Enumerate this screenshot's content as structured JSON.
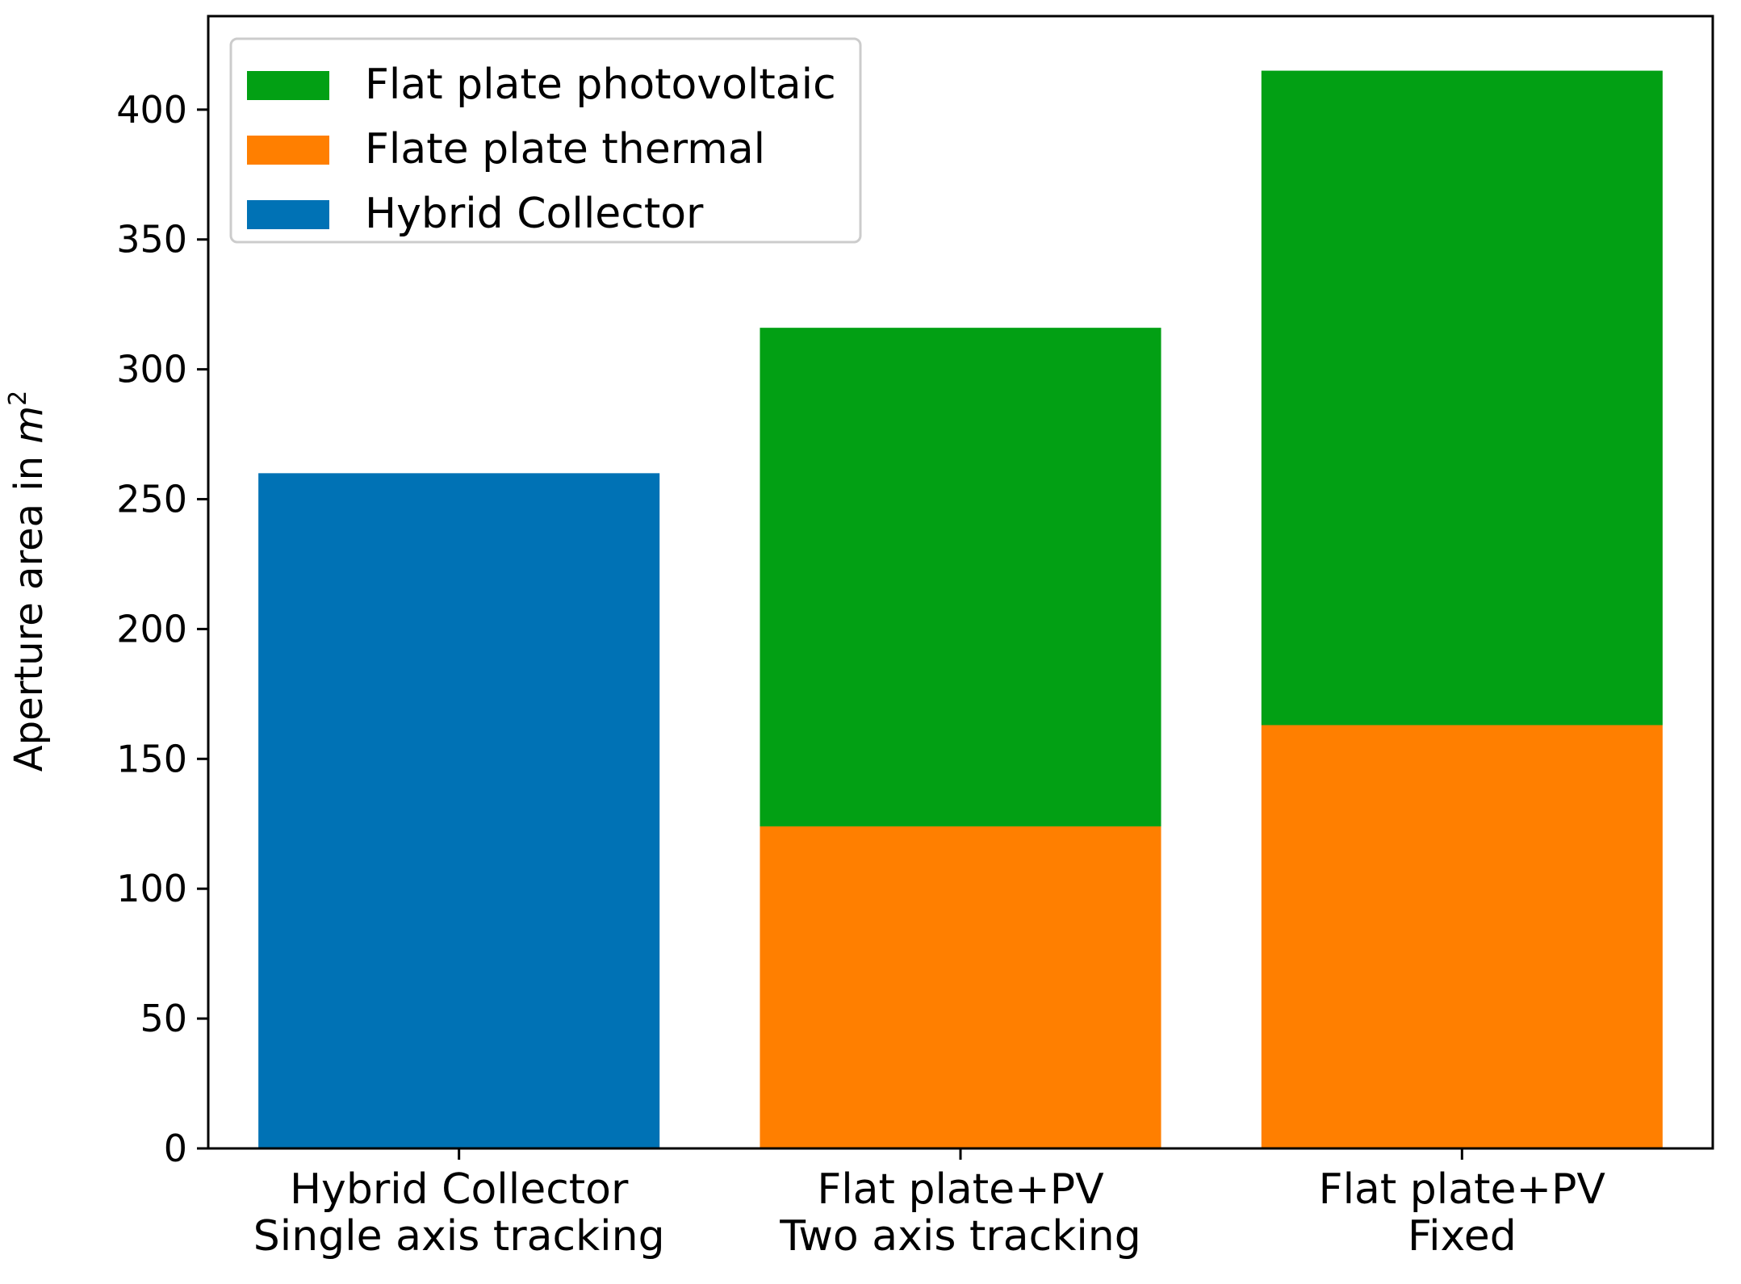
{
  "chart_data": {
    "type": "bar",
    "stacked": true,
    "categories": [
      [
        "Hybrid Collector",
        "Single axis tracking"
      ],
      [
        "Flat plate+PV",
        "Two axis tracking"
      ],
      [
        "Flat plate+PV",
        "Fixed"
      ]
    ],
    "series": [
      {
        "name": "Hybrid Collector",
        "color": "#0072b5",
        "values": [
          260,
          0,
          0
        ]
      },
      {
        "name": "Flate plate thermal",
        "color": "#ff7f00",
        "values": [
          0,
          124,
          163
        ]
      },
      {
        "name": "Flat plate photovoltaic",
        "color": "#02a014",
        "values": [
          0,
          192,
          252
        ]
      }
    ],
    "legend_order": [
      "Flat plate photovoltaic",
      "Flate plate thermal",
      "Hybrid Collector"
    ],
    "legend_position": "top-left",
    "ylabel": "Aperture area in",
    "ylabel_math": "m",
    "ylabel_exp": "2",
    "yticks": [
      0,
      50,
      100,
      150,
      200,
      250,
      300,
      350,
      400
    ],
    "ylim": [
      0,
      436
    ],
    "grid": false
  }
}
